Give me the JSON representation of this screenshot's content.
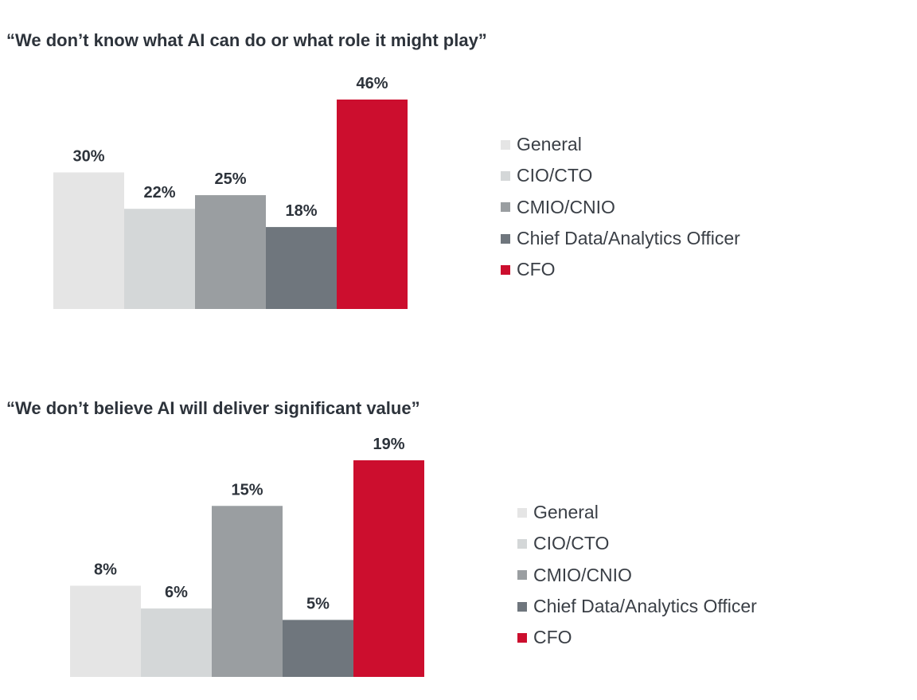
{
  "chart_data": [
    {
      "type": "bar",
      "title": "“We don’t know what AI can do or what role it might play”",
      "categories": [
        "General",
        "CIO/CTO",
        "CMIO/CNIO",
        "Chief Data/Analytics Officer",
        "CFO"
      ],
      "values": [
        30,
        22,
        25,
        18,
        46
      ],
      "data_labels": [
        "30%",
        "22%",
        "25%",
        "18%",
        "46%"
      ],
      "colors": [
        "#e5e5e5",
        "#d4d7d8",
        "#9a9ea1",
        "#6f767d",
        "#cc0e2e"
      ],
      "legend_position": "right",
      "grid": false,
      "ylim": [
        0,
        46
      ]
    },
    {
      "type": "bar",
      "title": "“We don’t believe AI will deliver significant value”",
      "categories": [
        "General",
        "CIO/CTO",
        "CMIO/CNIO",
        "Chief Data/Analytics Officer",
        "CFO"
      ],
      "values": [
        8,
        6,
        15,
        5,
        19
      ],
      "data_labels": [
        "8%",
        "6%",
        "15%",
        "5%",
        "19%"
      ],
      "colors": [
        "#e5e5e5",
        "#d4d7d8",
        "#9a9ea1",
        "#6f767d",
        "#cc0e2e"
      ],
      "legend_position": "right",
      "grid": false,
      "ylim": [
        0,
        19
      ]
    }
  ]
}
